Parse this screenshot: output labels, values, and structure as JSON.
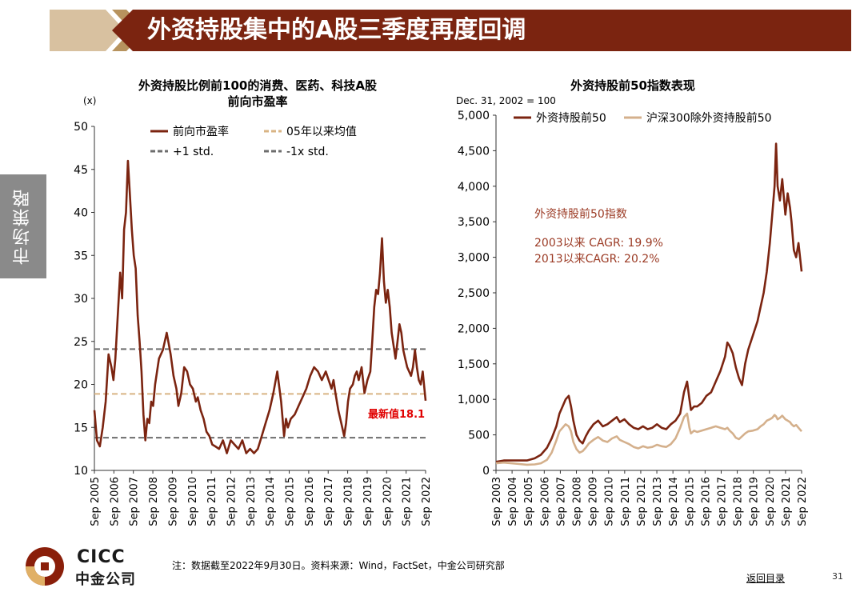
{
  "header": {
    "title": "外资持股集中的A股三季度再度回调"
  },
  "side_tab": {
    "label": "市场策略"
  },
  "footnote": "注：数据截至2022年9月30日。资料来源：Wind，FactSet，中金公司研究部",
  "nav": {
    "return_label": "返回目录",
    "page_number": "31"
  },
  "logo": {
    "en": "CICC",
    "cn": "中金公司"
  },
  "chart_data": [
    {
      "type": "line",
      "title": "外资持股比例前100的消费、医药、科技A股",
      "subtitle": "前向市盈率",
      "unit_label": "(x)",
      "ylim": [
        10,
        50
      ],
      "y_ticks": [
        10,
        15,
        20,
        25,
        30,
        35,
        40,
        45,
        50
      ],
      "x_range": [
        2005.67,
        2022.75
      ],
      "x_ticks": [
        "Sep 2005",
        "Sep 2006",
        "Sep 2007",
        "Sep 2008",
        "Sep 2009",
        "Sep 2010",
        "Sep 2011",
        "Sep 2012",
        "Sep 2013",
        "Sep 2014",
        "Sep 2015",
        "Sep 2016",
        "Sep 2017",
        "Sep 2018",
        "Sep 2019",
        "Sep 2020",
        "Sep 2021",
        "Sep 2022"
      ],
      "legend": [
        "前向市盈率",
        "05年以来均值",
        "+1 std.",
        "-1x std."
      ],
      "series": [
        {
          "name": "前向市盈率",
          "color": "#7b2410",
          "x": [
            2005.67,
            2005.8,
            2005.95,
            2006.1,
            2006.25,
            2006.4,
            2006.55,
            2006.65,
            2006.75,
            2006.85,
            2007.0,
            2007.1,
            2007.2,
            2007.3,
            2007.4,
            2007.5,
            2007.6,
            2007.7,
            2007.8,
            2007.9,
            2008.0,
            2008.1,
            2008.2,
            2008.3,
            2008.4,
            2008.5,
            2008.6,
            2008.7,
            2008.8,
            2008.9,
            2009.0,
            2009.2,
            2009.4,
            2009.6,
            2009.75,
            2009.9,
            2010.0,
            2010.15,
            2010.3,
            2010.45,
            2010.6,
            2010.75,
            2010.9,
            2011.0,
            2011.15,
            2011.3,
            2011.45,
            2011.6,
            2011.75,
            2011.9,
            2012.1,
            2012.3,
            2012.5,
            2012.7,
            2012.9,
            2013.1,
            2013.3,
            2013.5,
            2013.7,
            2013.9,
            2014.1,
            2014.3,
            2014.5,
            2014.7,
            2014.9,
            2015.1,
            2015.3,
            2015.45,
            2015.55,
            2015.65,
            2015.8,
            2016.0,
            2016.2,
            2016.4,
            2016.6,
            2016.8,
            2017.0,
            2017.2,
            2017.4,
            2017.6,
            2017.75,
            2017.9,
            2018.0,
            2018.1,
            2018.25,
            2018.4,
            2018.55,
            2018.65,
            2018.75,
            2018.85,
            2019.0,
            2019.1,
            2019.2,
            2019.3,
            2019.45,
            2019.6,
            2019.75,
            2019.9,
            2020.0,
            2020.1,
            2020.2,
            2020.3,
            2020.4,
            2020.5,
            2020.6,
            2020.7,
            2020.8,
            2020.9,
            2021.0,
            2021.1,
            2021.2,
            2021.3,
            2021.4,
            2021.5,
            2021.6,
            2021.7,
            2021.8,
            2021.9,
            2022.0,
            2022.1,
            2022.2,
            2022.3,
            2022.4,
            2022.5,
            2022.6,
            2022.75
          ],
          "y": [
            17.0,
            13.5,
            12.8,
            15.0,
            18.0,
            23.5,
            22.0,
            20.5,
            23.0,
            27.0,
            33.0,
            30.0,
            38.0,
            40.0,
            46.0,
            42.0,
            38.0,
            35.0,
            33.5,
            28.0,
            25.0,
            21.5,
            16.5,
            13.5,
            16.0,
            15.5,
            18.0,
            17.5,
            20.0,
            21.5,
            23.0,
            24.0,
            26.0,
            23.5,
            21.0,
            19.5,
            17.5,
            19.0,
            22.0,
            21.5,
            20.0,
            19.5,
            18.0,
            18.5,
            17.0,
            16.0,
            14.5,
            14.0,
            13.0,
            12.8,
            12.5,
            13.5,
            12.0,
            13.5,
            13.0,
            12.5,
            13.5,
            12.0,
            12.5,
            12.0,
            12.5,
            14.0,
            15.5,
            17.0,
            19.0,
            21.5,
            18.0,
            14.0,
            16.0,
            15.0,
            16.0,
            16.5,
            17.5,
            18.5,
            19.5,
            21.0,
            22.0,
            21.5,
            20.5,
            21.5,
            20.5,
            19.5,
            20.5,
            19.0,
            17.0,
            15.5,
            14.0,
            15.5,
            18.0,
            19.5,
            20.0,
            21.0,
            21.5,
            20.5,
            22.0,
            19.0,
            20.5,
            21.5,
            25.0,
            29.0,
            31.0,
            30.5,
            33.0,
            37.0,
            32.0,
            29.5,
            31.0,
            29.0,
            26.0,
            24.5,
            23.0,
            25.0,
            27.0,
            26.0,
            24.0,
            23.0,
            22.0,
            21.5,
            21.0,
            22.0,
            24.0,
            22.0,
            20.5,
            20.0,
            21.5,
            18.1
          ]
        }
      ],
      "reference_lines": [
        {
          "name": "05年以来均值",
          "value": 18.9,
          "color": "#d9b484"
        },
        {
          "name": "+1 std.",
          "value": 24.1,
          "color": "#6d6d6d"
        },
        {
          "name": "-1x std.",
          "value": 13.8,
          "color": "#6d6d6d"
        }
      ],
      "annotation": {
        "text": "最新值18.1",
        "color": "#e00000"
      }
    },
    {
      "type": "line",
      "title": "外资持股前50指数表现",
      "subtitle": "Dec. 31, 2002 = 100",
      "ylim": [
        0,
        5000
      ],
      "y_ticks": [
        0,
        500,
        1000,
        1500,
        2000,
        2500,
        3000,
        3500,
        4000,
        4500,
        5000
      ],
      "x_range": [
        2003.0,
        2022.75
      ],
      "x_ticks": [
        "Sep 2003",
        "Sep 2004",
        "Sep 2005",
        "Sep 2006",
        "Sep 2007",
        "Sep 2008",
        "Sep 2009",
        "Sep 2010",
        "Sep 2011",
        "Sep 2012",
        "Sep 2013",
        "Sep 2014",
        "Sep 2015",
        "Sep 2016",
        "Sep 2017",
        "Sep 2018",
        "Sep 2019",
        "Sep 2020",
        "Sep 2021",
        "Sep 2022"
      ],
      "legend": [
        "外资持股前50",
        "沪深300除外资持股前50"
      ],
      "series": [
        {
          "name": "外资持股前50",
          "color": "#7b2410",
          "x": [
            2003.0,
            2003.5,
            2004.0,
            2004.5,
            2005.0,
            2005.5,
            2005.9,
            2006.3,
            2006.6,
            2006.9,
            2007.1,
            2007.3,
            2007.5,
            2007.7,
            2007.85,
            2008.0,
            2008.2,
            2008.4,
            2008.6,
            2008.8,
            2009.0,
            2009.3,
            2009.6,
            2009.9,
            2010.2,
            2010.5,
            2010.8,
            2011.0,
            2011.3,
            2011.6,
            2011.9,
            2012.2,
            2012.5,
            2012.8,
            2013.1,
            2013.4,
            2013.7,
            2014.0,
            2014.3,
            2014.6,
            2014.9,
            2015.15,
            2015.35,
            2015.5,
            2015.6,
            2015.8,
            2016.0,
            2016.3,
            2016.6,
            2016.9,
            2017.2,
            2017.5,
            2017.8,
            2017.95,
            2018.1,
            2018.3,
            2018.5,
            2018.7,
            2018.9,
            2019.1,
            2019.3,
            2019.6,
            2019.9,
            2020.1,
            2020.3,
            2020.5,
            2020.7,
            2020.85,
            2021.0,
            2021.1,
            2021.2,
            2021.35,
            2021.5,
            2021.7,
            2021.85,
            2022.0,
            2022.1,
            2022.25,
            2022.4,
            2022.55,
            2022.75
          ],
          "y": [
            120,
            140,
            140,
            140,
            140,
            170,
            220,
            320,
            450,
            620,
            800,
            900,
            1000,
            1050,
            900,
            700,
            500,
            420,
            380,
            480,
            560,
            650,
            700,
            620,
            650,
            700,
            750,
            680,
            720,
            650,
            600,
            580,
            620,
            580,
            600,
            650,
            600,
            580,
            650,
            700,
            800,
            1100,
            1250,
            1000,
            850,
            900,
            900,
            950,
            1050,
            1100,
            1250,
            1400,
            1600,
            1800,
            1750,
            1650,
            1450,
            1300,
            1200,
            1500,
            1700,
            1900,
            2100,
            2300,
            2500,
            2800,
            3200,
            3600,
            4000,
            4600,
            4000,
            3800,
            4100,
            3600,
            3900,
            3700,
            3500,
            3100,
            3000,
            3200,
            2800
          ]
        },
        {
          "name": "沪深300除外资持股前50",
          "color": "#d4b08c",
          "x": [
            2003.0,
            2003.5,
            2004.0,
            2004.5,
            2005.0,
            2005.5,
            2005.9,
            2006.3,
            2006.6,
            2006.9,
            2007.1,
            2007.3,
            2007.5,
            2007.7,
            2007.85,
            2008.0,
            2008.2,
            2008.4,
            2008.6,
            2008.8,
            2009.0,
            2009.3,
            2009.6,
            2009.9,
            2010.2,
            2010.5,
            2010.8,
            2011.0,
            2011.3,
            2011.6,
            2011.9,
            2012.2,
            2012.5,
            2012.8,
            2013.1,
            2013.4,
            2013.7,
            2014.0,
            2014.3,
            2014.6,
            2014.9,
            2015.15,
            2015.35,
            2015.5,
            2015.6,
            2015.8,
            2016.0,
            2016.3,
            2016.6,
            2016.9,
            2017.2,
            2017.5,
            2017.8,
            2017.95,
            2018.1,
            2018.3,
            2018.5,
            2018.7,
            2018.9,
            2019.1,
            2019.3,
            2019.6,
            2019.9,
            2020.1,
            2020.3,
            2020.5,
            2020.7,
            2020.85,
            2021.0,
            2021.1,
            2021.2,
            2021.35,
            2021.5,
            2021.7,
            2021.85,
            2022.0,
            2022.1,
            2022.25,
            2022.4,
            2022.55,
            2022.75
          ],
          "y": [
            100,
            110,
            100,
            90,
            80,
            85,
            100,
            150,
            250,
            420,
            550,
            600,
            650,
            620,
            550,
            400,
            300,
            250,
            270,
            320,
            380,
            430,
            470,
            420,
            400,
            450,
            480,
            430,
            400,
            370,
            330,
            310,
            340,
            320,
            330,
            360,
            340,
            330,
            370,
            450,
            600,
            750,
            800,
            600,
            520,
            560,
            540,
            560,
            580,
            600,
            620,
            600,
            580,
            600,
            560,
            520,
            460,
            440,
            480,
            520,
            550,
            560,
            580,
            620,
            650,
            700,
            720,
            740,
            780,
            760,
            720,
            740,
            770,
            720,
            700,
            680,
            650,
            620,
            640,
            600,
            550
          ]
        }
      ],
      "text_box": {
        "title": "外资持股前50指数",
        "lines": [
          "2003以来 CAGR: 19.9%",
          "2013以来CAGR:  20.2%"
        ],
        "color": "#9b3a24"
      }
    }
  ]
}
